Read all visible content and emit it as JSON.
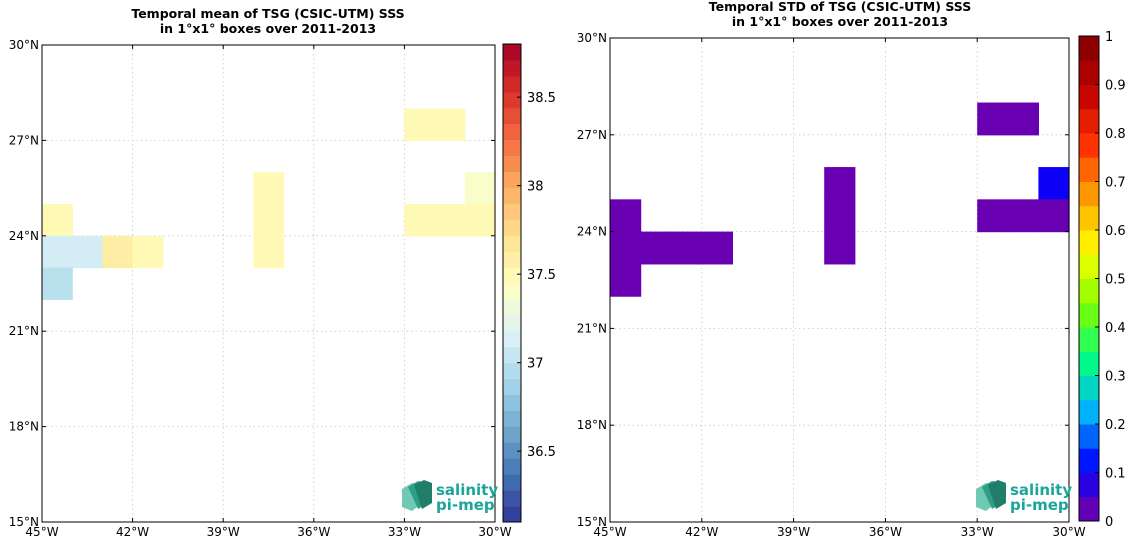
{
  "chart_data": [
    {
      "type": "heatmap",
      "title": "Temporal mean of TSG (CSIC-UTM) SSS",
      "subtitle": "in 1°x1° boxes over 2011-2013",
      "x_ticks": [
        "45°W",
        "42°W",
        "39°W",
        "36°W",
        "33°W",
        "30°W"
      ],
      "y_ticks": [
        "15°N",
        "18°N",
        "21°N",
        "24°N",
        "27°N",
        "30°N"
      ],
      "xlim": [
        -45,
        -30
      ],
      "ylim": [
        15,
        30
      ],
      "grid": true,
      "colorbar": {
        "min": 36.1,
        "max": 38.8,
        "ticks": [
          "36.5",
          "37",
          "37.5",
          "38",
          "38.5"
        ],
        "tick_values": [
          36.5,
          37,
          37.5,
          38,
          38.5
        ]
      },
      "cells": [
        {
          "lon": -45,
          "lat": 24,
          "value": 37.5
        },
        {
          "lon": -45,
          "lat": 23,
          "value": 37.12
        },
        {
          "lon": -44,
          "lat": 23,
          "value": 37.12
        },
        {
          "lon": -43,
          "lat": 23,
          "value": 37.6
        },
        {
          "lon": -42,
          "lat": 23,
          "value": 37.5
        },
        {
          "lon": -45,
          "lat": 22,
          "value": 36.98
        },
        {
          "lon": -38,
          "lat": 25,
          "value": 37.5
        },
        {
          "lon": -38,
          "lat": 24,
          "value": 37.5
        },
        {
          "lon": -38,
          "lat": 23,
          "value": 37.5
        },
        {
          "lon": -33,
          "lat": 27,
          "value": 37.5
        },
        {
          "lon": -32,
          "lat": 27,
          "value": 37.5
        },
        {
          "lon": -31,
          "lat": 25,
          "value": 37.4
        },
        {
          "lon": -33,
          "lat": 24,
          "value": 37.5
        },
        {
          "lon": -32,
          "lat": 24,
          "value": 37.5
        },
        {
          "lon": -31,
          "lat": 24,
          "value": 37.5
        }
      ],
      "logo": {
        "line1": "salinity",
        "line2": "pi-mep"
      }
    },
    {
      "type": "heatmap",
      "title": "Temporal STD of TSG (CSIC-UTM) SSS",
      "subtitle": "in 1°x1° boxes over 2011-2013",
      "x_ticks": [
        "45°W",
        "42°W",
        "39°W",
        "36°W",
        "33°W",
        "30°W"
      ],
      "y_ticks": [
        "15°N",
        "18°N",
        "21°N",
        "24°N",
        "27°N",
        "30°N"
      ],
      "xlim": [
        -45,
        -30
      ],
      "ylim": [
        15,
        30
      ],
      "grid": true,
      "colorbar": {
        "min": 0,
        "max": 1,
        "ticks": [
          "0",
          "0.1",
          "0.2",
          "0.3",
          "0.4",
          "0.5",
          "0.6",
          "0.7",
          "0.8",
          "0.9",
          "1"
        ],
        "tick_values": [
          0,
          0.1,
          0.2,
          0.3,
          0.4,
          0.5,
          0.6,
          0.7,
          0.8,
          0.9,
          1
        ]
      },
      "cells": [
        {
          "lon": -45,
          "lat": 24,
          "value": 0.02
        },
        {
          "lon": -45,
          "lat": 23,
          "value": 0.02
        },
        {
          "lon": -45,
          "lat": 22,
          "value": 0.02
        },
        {
          "lon": -44,
          "lat": 23,
          "value": 0.02
        },
        {
          "lon": -43,
          "lat": 23,
          "value": 0.02
        },
        {
          "lon": -42,
          "lat": 23,
          "value": 0.02
        },
        {
          "lon": -38,
          "lat": 25,
          "value": 0.02
        },
        {
          "lon": -38,
          "lat": 24,
          "value": 0.02
        },
        {
          "lon": -38,
          "lat": 23,
          "value": 0.02
        },
        {
          "lon": -33,
          "lat": 27,
          "value": 0.02
        },
        {
          "lon": -32,
          "lat": 27,
          "value": 0.02
        },
        {
          "lon": -31,
          "lat": 25,
          "value": 0.1
        },
        {
          "lon": -33,
          "lat": 24,
          "value": 0.02
        },
        {
          "lon": -32,
          "lat": 24,
          "value": 0.02
        },
        {
          "lon": -31,
          "lat": 24,
          "value": 0.02
        }
      ],
      "logo": {
        "line1": "salinity",
        "line2": "pi-mep"
      }
    }
  ]
}
